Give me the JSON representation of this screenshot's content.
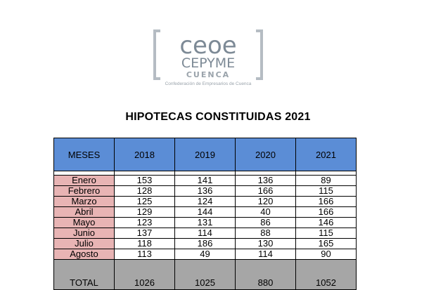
{
  "logo": {
    "name": "ceoe",
    "sub": "CEPYME",
    "region": "CUENCA",
    "tagline": "Confederación de Empresarios de Cuenca",
    "colors": {
      "text": "#7d8a96",
      "bracket": "#b5bcc3"
    }
  },
  "title": "HIPOTECAS CONSTITUIDAS 2021",
  "table": {
    "headers": [
      "MESES",
      "2018",
      "2019",
      "2020",
      "2021"
    ],
    "rows": [
      {
        "month": "Enero",
        "values": [
          "153",
          "141",
          "136",
          "89"
        ]
      },
      {
        "month": "Febrero",
        "values": [
          "128",
          "136",
          "166",
          "115"
        ]
      },
      {
        "month": "Marzo",
        "values": [
          "125",
          "124",
          "120",
          "166"
        ]
      },
      {
        "month": "Abril",
        "values": [
          "129",
          "144",
          "40",
          "166"
        ]
      },
      {
        "month": "Mayo",
        "values": [
          "123",
          "131",
          "86",
          "146"
        ]
      },
      {
        "month": "Junio",
        "values": [
          "137",
          "114",
          "88",
          "115"
        ]
      },
      {
        "month": "Julio",
        "values": [
          "118",
          "186",
          "130",
          "165"
        ]
      },
      {
        "month": "Agosto",
        "values": [
          "113",
          "49",
          "114",
          "90"
        ]
      }
    ],
    "total": {
      "label": "TOTAL",
      "values": [
        "1026",
        "1025",
        "880",
        "1052"
      ]
    },
    "colors": {
      "header": "#5b8dd6",
      "month": "#e8b4b4",
      "total": "#a6a6a6"
    }
  }
}
